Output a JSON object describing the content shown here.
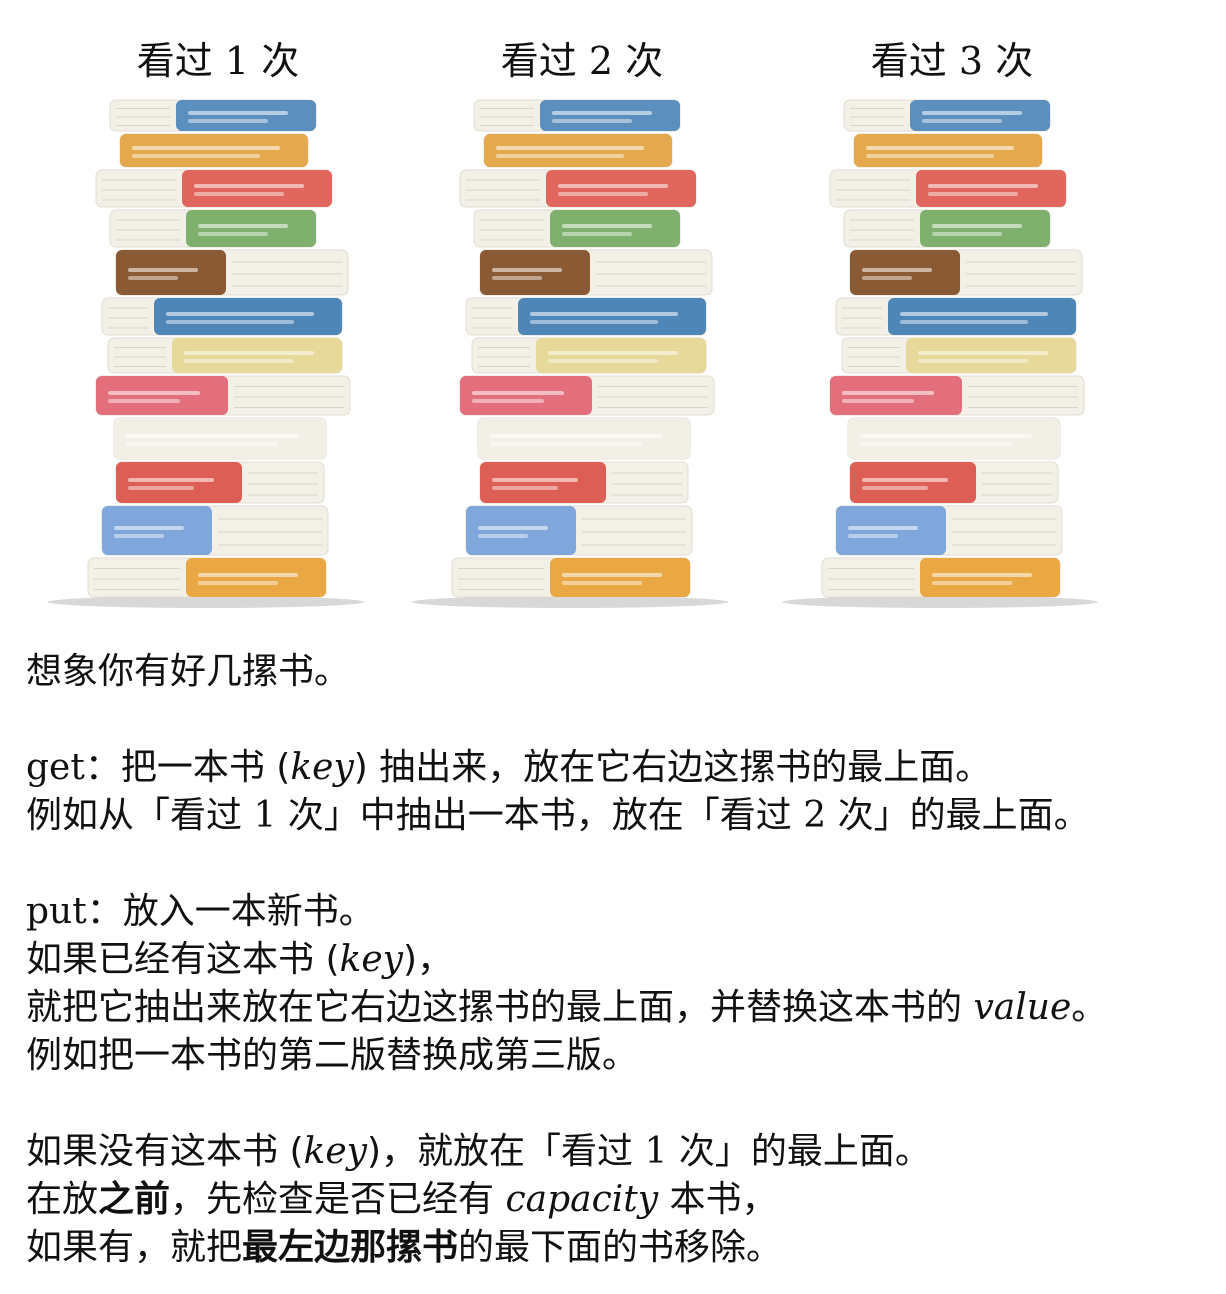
{
  "stacks": [
    {
      "title_prefix": "看过",
      "number": "1",
      "title_suffix": "次"
    },
    {
      "title_prefix": "看过",
      "number": "2",
      "title_suffix": "次"
    },
    {
      "title_prefix": "看过",
      "number": "3",
      "title_suffix": "次"
    }
  ],
  "book_colors": [
    "#5b8fbd",
    "#e3a94c",
    "#e0665e",
    "#7fb06e",
    "#8a5a35",
    "#4f86b8",
    "#e6d99a",
    "#e36f7d",
    "#f1efe6",
    "#dd5e55",
    "#7fa7db",
    "#e9a844"
  ],
  "text": {
    "intro": "想象你有好几摞书。",
    "get_label": "get",
    "get_line1_a": "：把一本书 (",
    "get_key": "key",
    "get_line1_b": ") 抽出来，放在它右边这摞书的最上面。",
    "get_line2_a": "例如从「看过 ",
    "get_line2_n1": "1",
    "get_line2_b": " 次」中抽出一本书，放在「看过 ",
    "get_line2_n2": "2",
    "get_line2_c": " 次」的最上面。",
    "put_label": "put",
    "put_line1": "：放入一本新书。",
    "put_line2_a": "如果已经有这本书 (",
    "put_key": "key",
    "put_line2_b": ")，",
    "put_line3_a": "就把它抽出来放在它右边这摞书的最上面，并替换这本书的 ",
    "put_value": "value",
    "put_line3_b": "。",
    "put_line4": "例如把一本书的第二版替换成第三版。",
    "new_line1_a": "如果没有这本书 (",
    "new_key": "key",
    "new_line1_b": ")，就放在「看过 ",
    "new_line1_n": "1",
    "new_line1_c": " 次」的最上面。",
    "new_line2_a": "在放",
    "new_line2_bold": "之前",
    "new_line2_b": "，先检查是否已经有 ",
    "new_capacity": "capacity",
    "new_line2_c": " 本书，",
    "new_line3_a": "如果有，就把",
    "new_line3_bold": "最左边那摞书",
    "new_line3_b": "的最下面的书移除。"
  }
}
